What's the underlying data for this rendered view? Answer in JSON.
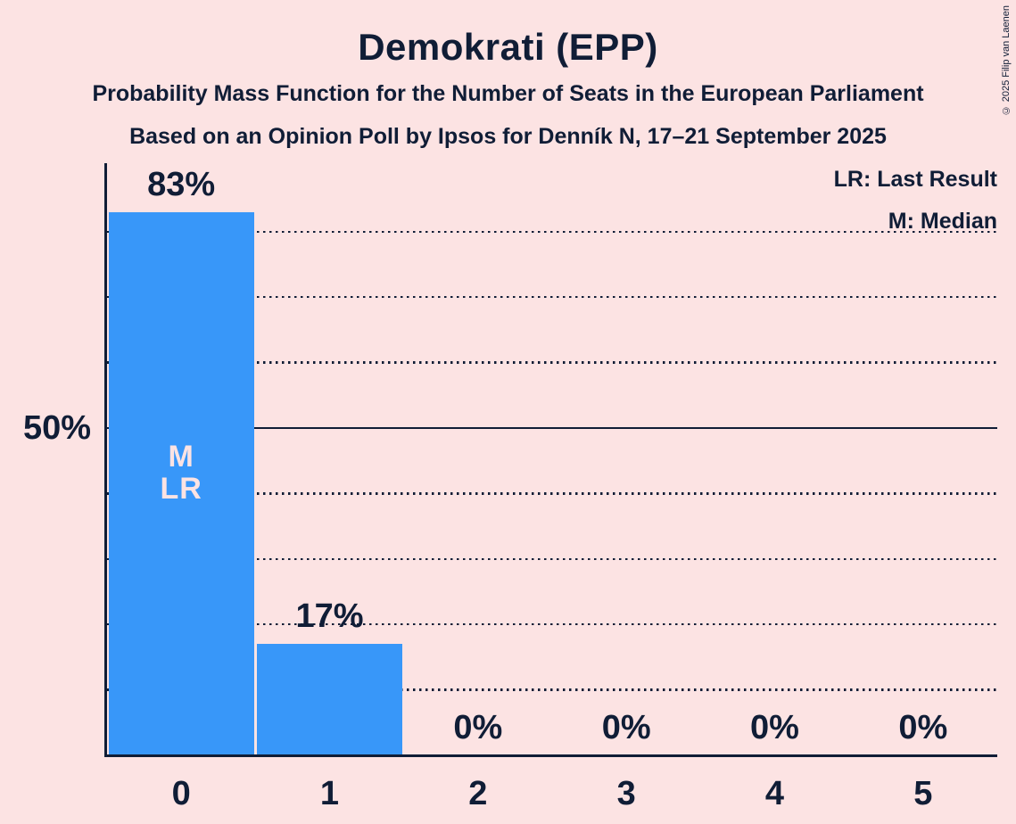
{
  "page": {
    "background_color": "#fce3e3",
    "text_color": "#101d36"
  },
  "header": {
    "title": "Demokrati (EPP)",
    "subtitle1": "Probability Mass Function for the Number of Seats in the European Parliament",
    "subtitle2": "Based on an Opinion Poll by Ipsos for Denník N, 17–21 September 2025"
  },
  "legend": {
    "line1": "LR: Last Result",
    "line2": "M: Median"
  },
  "copyright": "© 2025 Filip van Laenen",
  "chart_data": {
    "type": "bar",
    "title": "Demokrati (EPP)",
    "categories": [
      "0",
      "1",
      "2",
      "3",
      "4",
      "5"
    ],
    "values": [
      83,
      17,
      0,
      0,
      0,
      0
    ],
    "value_labels": [
      "83%",
      "17%",
      "0%",
      "0%",
      "0%",
      "0%"
    ],
    "y_axis_label": "50%",
    "ylim": [
      0,
      90
    ],
    "gridlines_pct": [
      10,
      20,
      30,
      40,
      50,
      60,
      70,
      80
    ],
    "solid_gridline_pct": 50,
    "grid_on": true,
    "legend_position": "top-right",
    "bar_color": "#3897f9",
    "bar_label_color": "#fce3e3",
    "annotations": [
      {
        "bar_index": 0,
        "lines": [
          "M",
          "LR"
        ]
      }
    ]
  }
}
